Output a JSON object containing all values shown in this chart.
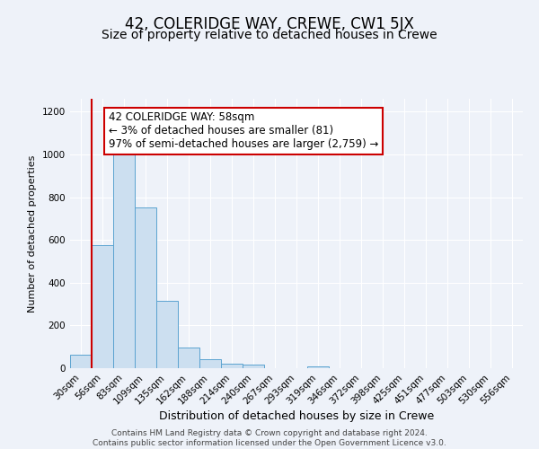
{
  "title": "42, COLERIDGE WAY, CREWE, CW1 5JX",
  "subtitle": "Size of property relative to detached houses in Crewe",
  "xlabel": "Distribution of detached houses by size in Crewe",
  "ylabel": "Number of detached properties",
  "bar_labels": [
    "30sqm",
    "56sqm",
    "83sqm",
    "109sqm",
    "135sqm",
    "162sqm",
    "188sqm",
    "214sqm",
    "240sqm",
    "267sqm",
    "293sqm",
    "319sqm",
    "346sqm",
    "372sqm",
    "398sqm",
    "425sqm",
    "451sqm",
    "477sqm",
    "503sqm",
    "530sqm",
    "556sqm"
  ],
  "bar_values": [
    65,
    575,
    1005,
    750,
    315,
    95,
    40,
    20,
    15,
    0,
    0,
    10,
    0,
    0,
    0,
    0,
    0,
    0,
    0,
    0,
    0
  ],
  "bar_color": "#ccdff0",
  "bar_edge_color": "#5ba3d0",
  "marker_line_color": "#cc0000",
  "annotation_text": "42 COLERIDGE WAY: 58sqm\n← 3% of detached houses are smaller (81)\n97% of semi-detached houses are larger (2,759) →",
  "annotation_box_color": "#ffffff",
  "annotation_box_edge_color": "#cc0000",
  "ylim": [
    0,
    1260
  ],
  "yticks": [
    0,
    200,
    400,
    600,
    800,
    1000,
    1200
  ],
  "footer_line1": "Contains HM Land Registry data © Crown copyright and database right 2024.",
  "footer_line2": "Contains public sector information licensed under the Open Government Licence v3.0.",
  "background_color": "#eef2f9",
  "plot_bg_color": "#eef2f9",
  "grid_color": "#ffffff",
  "title_fontsize": 12,
  "subtitle_fontsize": 10,
  "xlabel_fontsize": 9,
  "ylabel_fontsize": 8,
  "tick_fontsize": 7.5,
  "annotation_fontsize": 8.5,
  "footer_fontsize": 6.5
}
